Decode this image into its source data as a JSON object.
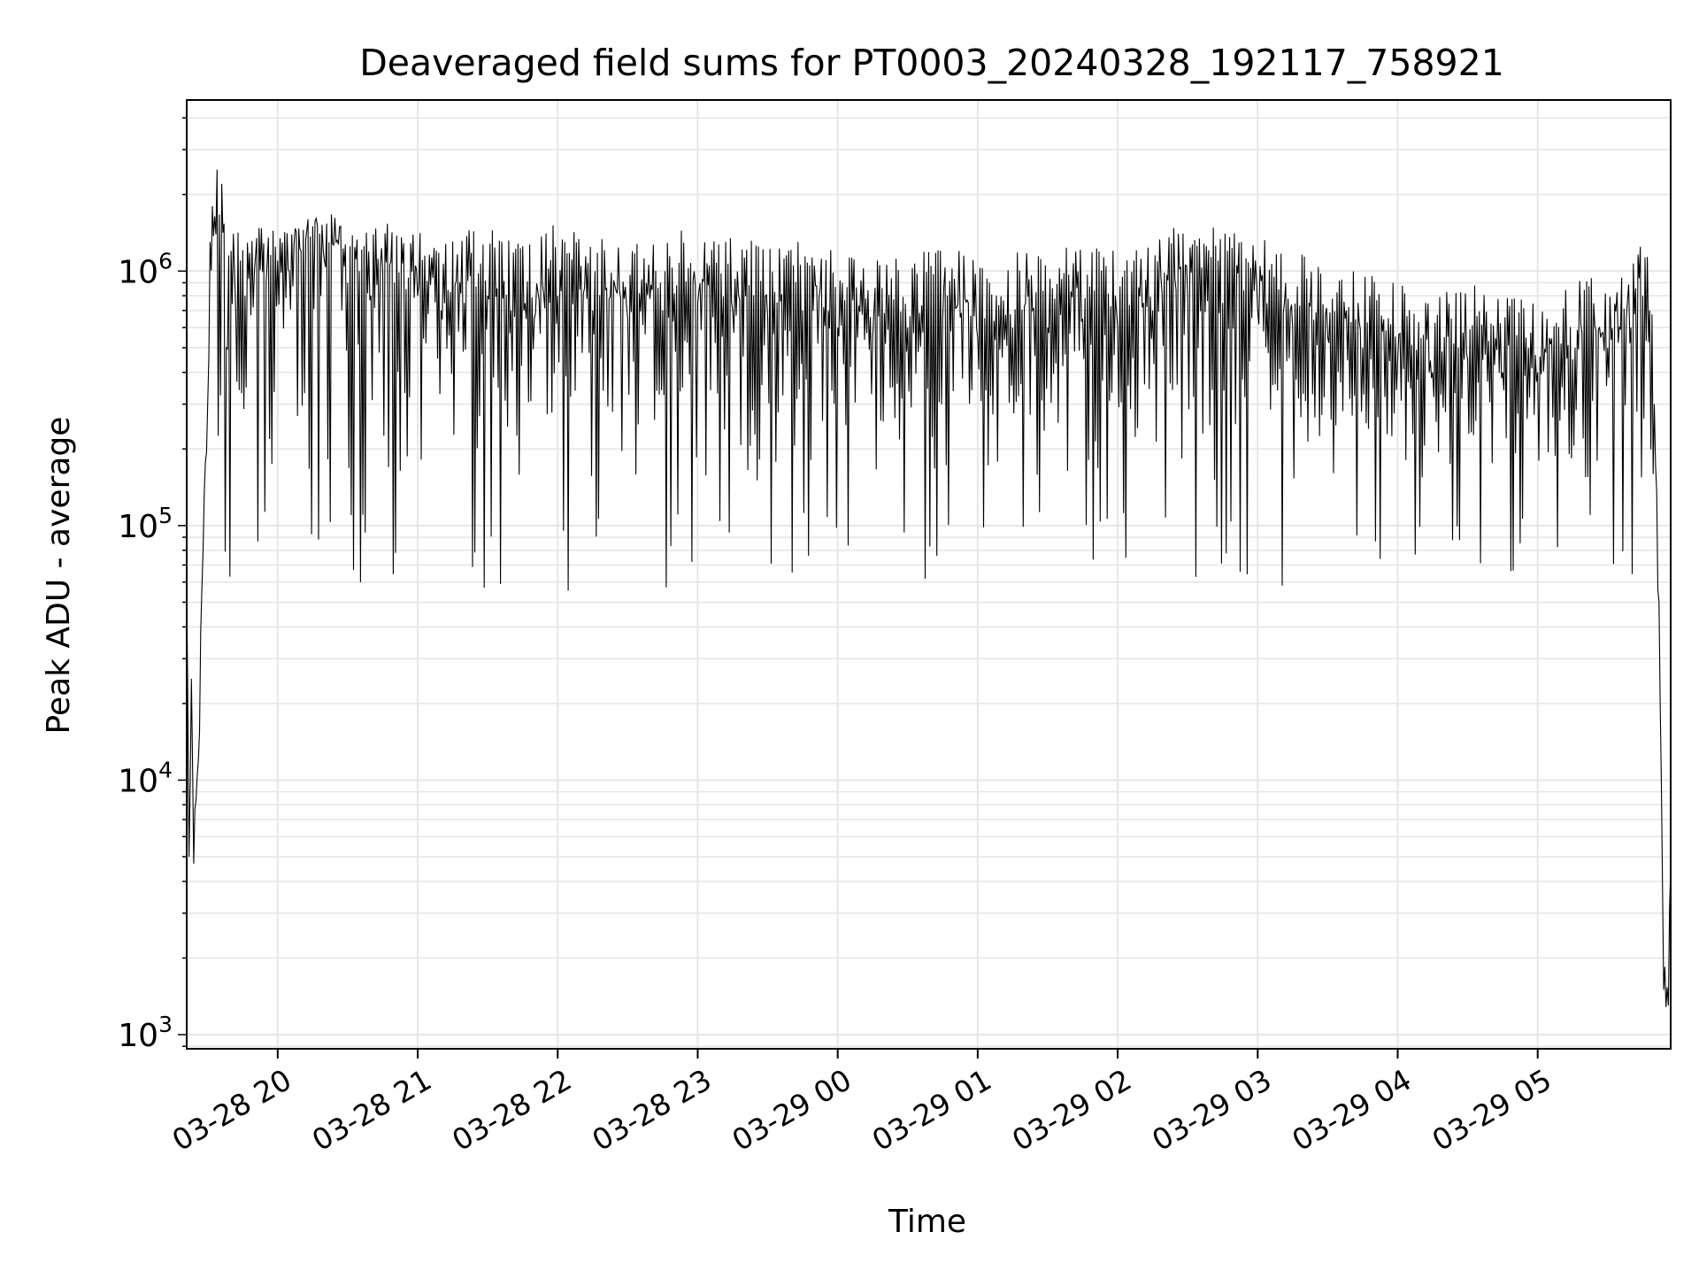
{
  "chart_data": {
    "type": "line",
    "title": "Deaveraged field sums for PT0003_20240328_192117_758921",
    "xlabel": "Time",
    "ylabel": "Peak ADU - average",
    "yscale": "log",
    "ylim": [
      880,
      4700000
    ],
    "xlim": [
      "2024-03-28 19:21",
      "2024-03-29 05:57"
    ],
    "x_ticks": [
      {
        "label": "03-28 20",
        "x": "2024-03-28 20:00"
      },
      {
        "label": "03-28 21",
        "x": "2024-03-28 21:00"
      },
      {
        "label": "03-28 22",
        "x": "2024-03-28 22:00"
      },
      {
        "label": "03-28 23",
        "x": "2024-03-28 23:00"
      },
      {
        "label": "03-29 00",
        "x": "2024-03-29 00:00"
      },
      {
        "label": "03-29 01",
        "x": "2024-03-29 01:00"
      },
      {
        "label": "03-29 02",
        "x": "2024-03-29 02:00"
      },
      {
        "label": "03-29 03",
        "x": "2024-03-29 03:00"
      },
      {
        "label": "03-29 04",
        "x": "2024-03-29 04:00"
      },
      {
        "label": "03-29 05",
        "x": "2024-03-29 05:00"
      }
    ],
    "y_ticks": [
      {
        "base": "10",
        "exp": "3",
        "value": 1000
      },
      {
        "base": "10",
        "exp": "4",
        "value": 10000
      },
      {
        "base": "10",
        "exp": "5",
        "value": 100000
      },
      {
        "base": "10",
        "exp": "6",
        "value": 1000000
      }
    ],
    "grid": true,
    "line_color": "#000000",
    "grid_color": "#e6e6e6",
    "series": [
      {
        "x": [
          "2024-03-28 19:21",
          "2024-03-28 19:22",
          "2024-03-28 19:23",
          "2024-03-28 19:24",
          "2024-03-28 19:26",
          "2024-03-28 19:28",
          "2024-03-28 19:30",
          "2024-03-28 19:32",
          "2024-03-28 19:34",
          "2024-03-28 19:36",
          "2024-03-28 19:38",
          "2024-03-28 19:40",
          "2024-03-28 19:42",
          "2024-03-28 19:44",
          "2024-03-28 19:46",
          "2024-03-28 19:50",
          "2024-03-28 19:55",
          "2024-03-28 20:00",
          "2024-03-28 20:05",
          "2024-03-28 20:10",
          "2024-03-28 20:15",
          "2024-03-28 20:20",
          "2024-03-28 20:25",
          "2024-03-28 20:30",
          "2024-03-28 20:35",
          "2024-03-28 20:40",
          "2024-03-28 20:45",
          "2024-03-28 20:50",
          "2024-03-28 20:55",
          "2024-03-28 21:00",
          "2024-03-28 21:10",
          "2024-03-28 21:20",
          "2024-03-28 21:30",
          "2024-03-28 21:40",
          "2024-03-28 21:50",
          "2024-03-28 22:00",
          "2024-03-28 22:15",
          "2024-03-28 22:30",
          "2024-03-28 22:45",
          "2024-03-28 23:00",
          "2024-03-28 23:15",
          "2024-03-28 23:30",
          "2024-03-28 23:45",
          "2024-03-29 00:00",
          "2024-03-29 00:15",
          "2024-03-29 00:30",
          "2024-03-29 00:45",
          "2024-03-29 01:00",
          "2024-03-29 01:15",
          "2024-03-29 01:30",
          "2024-03-29 01:45",
          "2024-03-29 02:00",
          "2024-03-29 02:15",
          "2024-03-29 02:30",
          "2024-03-29 02:45",
          "2024-03-29 03:00",
          "2024-03-29 03:15",
          "2024-03-29 03:30",
          "2024-03-29 03:45",
          "2024-03-29 04:00",
          "2024-03-29 04:15",
          "2024-03-29 04:30",
          "2024-03-29 04:45",
          "2024-03-29 05:00",
          "2024-03-29 05:15",
          "2024-03-29 05:30",
          "2024-03-29 05:40",
          "2024-03-29 05:45",
          "2024-03-29 05:48",
          "2024-03-29 05:50",
          "2024-03-29 05:52",
          "2024-03-29 05:54",
          "2024-03-29 05:56",
          "2024-03-29 05:57"
        ],
        "values": [
          60000,
          5000,
          25000,
          4700,
          12000,
          80000,
          300000,
          1800000,
          2500000,
          2200000,
          500000,
          1200000,
          700000,
          1100000,
          800000,
          1000000,
          900000,
          1100000,
          1000000,
          1200000,
          1500000,
          1100000,
          1300000,
          900000,
          1000000,
          800000,
          1000000,
          900000,
          850000,
          800000,
          700000,
          750000,
          800000,
          700000,
          650000,
          800000,
          700000,
          650000,
          700000,
          750000,
          700000,
          650000,
          700000,
          600000,
          550000,
          600000,
          650000,
          550000,
          600000,
          600000,
          650000,
          600000,
          700000,
          800000,
          750000,
          700000,
          600000,
          550000,
          500000,
          450000,
          400000,
          450000,
          400000,
          400000,
          450000,
          500000,
          600000,
          800000,
          700000,
          300000,
          50000,
          1500,
          1300,
          4500
        ],
        "noise": true
      }
    ]
  }
}
